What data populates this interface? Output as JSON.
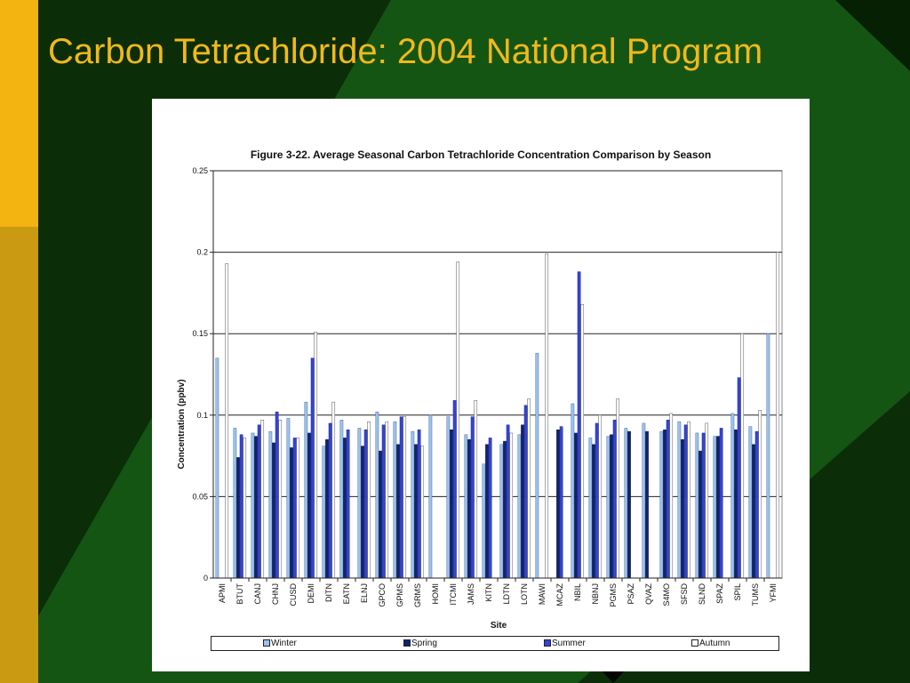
{
  "slide": {
    "title": "Carbon Tetrachloride: 2004 National Program"
  },
  "colors": {
    "winter": "#9cc3ee",
    "spring": "#10246e",
    "summer": "#3545d8",
    "autumn": "#ffffff",
    "title_text": "#f2b81a"
  },
  "chart_data": {
    "type": "bar",
    "title": "Figure 3-22.  Average Seasonal Carbon Tetrachloride Concentration Comparison by Season",
    "xlabel": "Site",
    "ylabel": "Concentration (ppbv)",
    "ylim": [
      0,
      0.25
    ],
    "yticks": [
      0,
      0.05,
      0.1,
      0.15,
      0.2,
      0.25
    ],
    "ytick_labels": [
      "0",
      "0.05",
      "0.1",
      "0.15",
      "0.2",
      "0.25"
    ],
    "grid": true,
    "legend_position": "bottom",
    "categories": [
      "APMI",
      "BTUT",
      "CANJ",
      "CHNJ",
      "CUSD",
      "DEMI",
      "DITN",
      "EATN",
      "ELNJ",
      "GPCO",
      "GPMS",
      "GRMS",
      "HOMI",
      "ITCMI",
      "JAMS",
      "KITN",
      "LDTN",
      "LOTN",
      "MAWI",
      "MCAZ",
      "NBIL",
      "NBNJ",
      "PGMS",
      "PSAZ",
      "QVAZ",
      "S4MO",
      "SFSD",
      "SLND",
      "SPAZ",
      "SPIL",
      "TUMS",
      "YFMI"
    ],
    "series": [
      {
        "name": "Winter",
        "values": [
          0.135,
          0.092,
          0.089,
          0.09,
          0.098,
          0.108,
          0.081,
          0.097,
          0.092,
          0.102,
          0.096,
          0.09,
          0.1,
          0.099,
          0.088,
          0.07,
          0.082,
          0.088,
          0.138,
          null,
          0.107,
          0.086,
          0.087,
          0.092,
          0.095,
          0.09,
          0.096,
          0.089,
          0.087,
          0.101,
          0.093,
          0.15
        ]
      },
      {
        "name": "Spring",
        "values": [
          null,
          0.074,
          0.087,
          0.083,
          0.08,
          0.089,
          0.085,
          0.086,
          0.081,
          0.078,
          0.082,
          0.082,
          null,
          0.091,
          0.085,
          0.082,
          0.084,
          0.094,
          null,
          0.091,
          0.089,
          0.082,
          0.088,
          0.09,
          0.09,
          0.091,
          0.085,
          0.078,
          0.087,
          0.091,
          0.082,
          null
        ]
      },
      {
        "name": "Summer",
        "values": [
          null,
          0.088,
          0.094,
          0.102,
          0.086,
          0.135,
          0.095,
          0.091,
          0.091,
          0.094,
          0.099,
          0.091,
          null,
          0.109,
          0.099,
          0.086,
          0.094,
          0.106,
          null,
          0.093,
          0.188,
          0.095,
          0.097,
          null,
          null,
          0.097,
          0.094,
          0.089,
          0.092,
          0.123,
          0.09,
          null
        ]
      },
      {
        "name": "Autumn",
        "values": [
          0.193,
          0.086,
          0.097,
          0.097,
          0.086,
          0.151,
          0.108,
          null,
          0.096,
          0.096,
          0.099,
          0.081,
          null,
          0.194,
          0.109,
          null,
          0.089,
          0.11,
          0.199,
          null,
          0.168,
          0.1,
          0.11,
          null,
          null,
          0.101,
          0.096,
          0.095,
          null,
          0.15,
          0.103,
          0.2
        ]
      }
    ]
  }
}
